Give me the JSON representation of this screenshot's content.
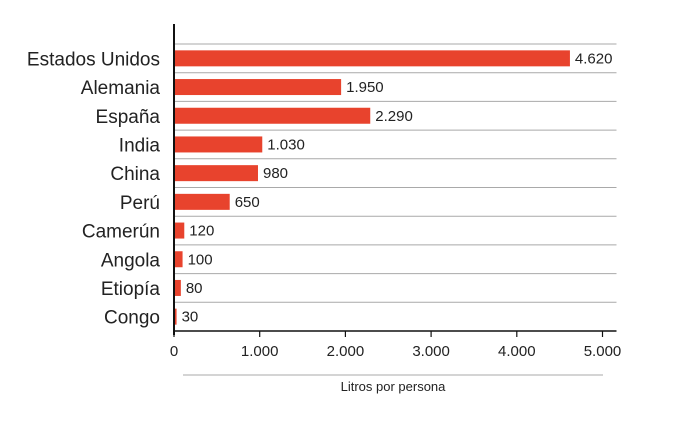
{
  "chart_data": {
    "type": "bar",
    "orientation": "horizontal",
    "categories": [
      "Estados Unidos",
      "Alemania",
      "España",
      "India",
      "China",
      "Perú",
      "Camerún",
      "Angola",
      "Etiopía",
      "Congo"
    ],
    "values": [
      4620,
      1950,
      2290,
      1030,
      980,
      650,
      120,
      100,
      80,
      30
    ],
    "value_labels": [
      "4.620",
      "1.950",
      "2.290",
      "1.030",
      "980",
      "650",
      "120",
      "100",
      "80",
      "30"
    ],
    "xlim": [
      0,
      5000
    ],
    "x_ticks": [
      0,
      1000,
      2000,
      3000,
      4000,
      5000
    ],
    "x_tick_labels": [
      "0",
      "1.000",
      "2.000",
      "3.000",
      "4.000",
      "5.000"
    ],
    "xlabel": "Litros por persona",
    "title": "",
    "grid": "horizontal row separators",
    "legend": "none",
    "bar_color": "#e8432d",
    "grid_color": "#a9a9a9",
    "axis_color": "#111111"
  }
}
